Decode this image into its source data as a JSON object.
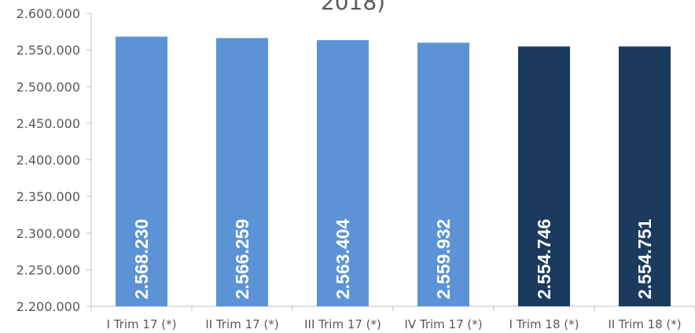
{
  "chart_data": {
    "type": "bar",
    "title_fragment": "2018)",
    "categories": [
      "I Trim 17 (*)",
      "II Trim 17 (*)",
      "III Trim 17 (*)",
      "IV Trim 17 (*)",
      "I Trim 18 (*)",
      "II Trim 18 (*)"
    ],
    "values": [
      2568230,
      2566259,
      2563404,
      2559932,
      2554746,
      2554751
    ],
    "value_labels": [
      "2.568.230",
      "2.566.259",
      "2.563.404",
      "2.559.932",
      "2.554.746",
      "2.554.751"
    ],
    "bar_colors": [
      "#5b93d6",
      "#5b93d6",
      "#5b93d6",
      "#5b93d6",
      "#1b3a5e",
      "#1b3a5e"
    ],
    "ylim": [
      2200000,
      2600000
    ],
    "yticks": [
      2200000,
      2250000,
      2300000,
      2350000,
      2400000,
      2450000,
      2500000,
      2550000,
      2600000
    ],
    "ytick_labels": [
      "2.200.000",
      "2.250.000",
      "2.300.000",
      "2.350.000",
      "2.400.000",
      "2.450.000",
      "2.500.000",
      "2.550.000",
      "2.600.000"
    ],
    "grid": false,
    "legend": "none",
    "axis_color": "#bfbfbf"
  }
}
